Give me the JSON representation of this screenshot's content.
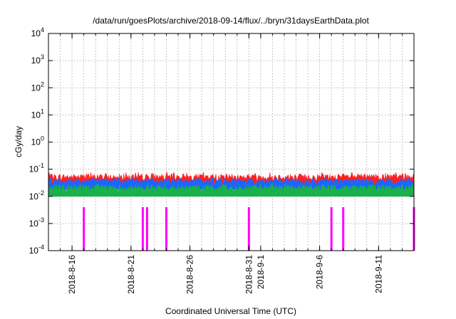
{
  "chart_data": {
    "type": "area",
    "title": "/data/run/goesPlots/archive/2018-09-14/flux/../bryn/31daysEarthData.plot",
    "xlabel": "Coordinated Universal Time (UTC)",
    "ylabel": "cGy/day",
    "y_scale": "log",
    "ylim": [
      0.0001,
      10000
    ],
    "y_ticks": [
      {
        "value": 0.0001,
        "base": "10",
        "exp": "-4"
      },
      {
        "value": 0.001,
        "base": "10",
        "exp": "-3"
      },
      {
        "value": 0.01,
        "base": "10",
        "exp": "-2"
      },
      {
        "value": 0.1,
        "base": "10",
        "exp": "-1"
      },
      {
        "value": 1,
        "base": "10",
        "exp": "0"
      },
      {
        "value": 10,
        "base": "10",
        "exp": "1"
      },
      {
        "value": 100,
        "base": "10",
        "exp": "2"
      },
      {
        "value": 1000,
        "base": "10",
        "exp": "3"
      },
      {
        "value": 10000,
        "base": "10",
        "exp": "4"
      }
    ],
    "xlim": [
      "2018-08-14",
      "2018-09-14"
    ],
    "x_ticks": [
      "2018-8-16",
      "2018-8-21",
      "2018-8-26",
      "2018-8-31",
      "2018-9-1",
      "2018-9-6",
      "2018-9-11"
    ],
    "grid": true,
    "series": [
      {
        "color": "#ff2020",
        "typical": 0.05,
        "peak": 0.08
      },
      {
        "color": "#1a66ff",
        "typical": 0.035,
        "peak": 0.05
      },
      {
        "color": "#1ab04a",
        "typical": 0.02,
        "peak": 0.03
      },
      {
        "color": "#ff00ff",
        "typical": 0.015,
        "floor": 0.004,
        "dropouts": [
          "2018-08-17",
          "2018-08-22",
          "2018-08-22",
          "2018-08-24",
          "2018-08-31",
          "2018-09-07",
          "2018-09-08",
          "2018-09-14"
        ]
      }
    ]
  }
}
